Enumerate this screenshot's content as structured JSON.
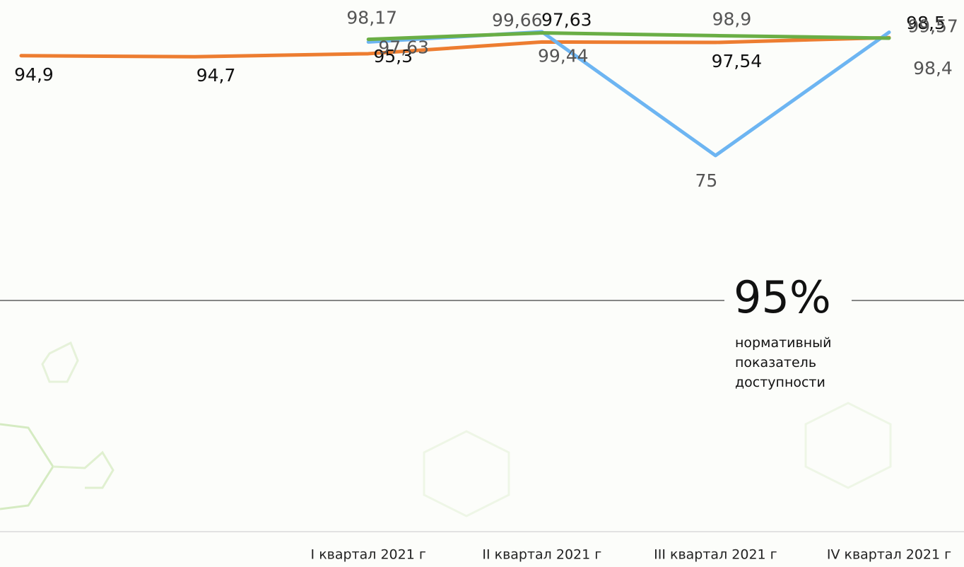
{
  "chart_data": {
    "type": "line",
    "categories": [
      null,
      null,
      "I квартал 2021 г",
      "II квартал 2021 г",
      "III квартал 2021 г",
      "IV квартал 2021 г"
    ],
    "series": [
      {
        "color": "#ed7d31",
        "values": [
          94.9,
          94.7,
          95.3,
          97.63,
          97.54,
          98.5
        ],
        "value_labels": [
          "94,9",
          "94,7",
          "95,3",
          "97,63",
          "97,54",
          "98,5"
        ]
      },
      {
        "color": "#6db5f2",
        "values": [
          null,
          null,
          97.63,
          99.66,
          75,
          99.57
        ],
        "value_labels": [
          null,
          null,
          "97,63",
          "99,66",
          "75",
          "99,57"
        ]
      },
      {
        "color": "#6aae45",
        "values": [
          null,
          null,
          98.17,
          99.44,
          98.9,
          98.4
        ],
        "value_labels": [
          null,
          null,
          "98,17",
          "99,44",
          "98,9",
          "98,4"
        ]
      }
    ],
    "annotation": {
      "value": "95%",
      "text": [
        "нормативный",
        "показатель",
        "доступности"
      ]
    }
  }
}
